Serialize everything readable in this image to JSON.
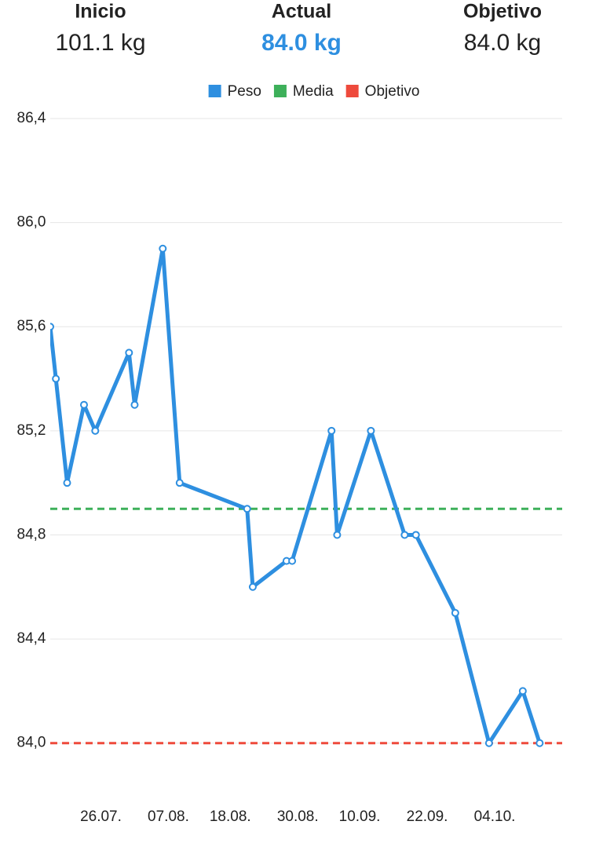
{
  "summary": [
    {
      "label": "Inicio",
      "value": "101.1 kg",
      "color": "#222222"
    },
    {
      "label": "Actual",
      "value": "84.0 kg",
      "color": "#2e8fe0"
    },
    {
      "label": "Objetivo",
      "value": "84.0 kg",
      "color": "#222222"
    }
  ],
  "chart_data": {
    "type": "line",
    "series": [
      {
        "name": "Peso",
        "color": "#2e8fe0",
        "x": [
          "17.07.",
          "18.07.",
          "20.07.",
          "23.07.",
          "25.07.",
          "31.07.",
          "01.08.",
          "06.08.",
          "09.08.",
          "21.08.",
          "22.08.",
          "28.08.",
          "29.08.",
          "05.09.",
          "06.09.",
          "12.09.",
          "18.09.",
          "20.09.",
          "27.09.",
          "03.10.",
          "09.10.",
          "12.10."
        ],
        "values": [
          85.6,
          85.4,
          85.0,
          85.3,
          85.2,
          85.5,
          85.3,
          85.9,
          85.0,
          84.9,
          84.6,
          84.7,
          84.7,
          85.2,
          84.8,
          85.2,
          84.8,
          84.8,
          84.5,
          84.0,
          84.2,
          84.0
        ]
      }
    ],
    "reference_lines": [
      {
        "name": "Media",
        "color": "#3db05a",
        "value": 84.9
      },
      {
        "name": "Objetivo",
        "color": "#ee4a3c",
        "value": 84.0
      }
    ],
    "xlim": [
      "17.07.",
      "16.10."
    ],
    "xticks": [
      "26.07.",
      "07.08.",
      "18.08.",
      "30.08.",
      "10.09.",
      "22.09.",
      "04.10."
    ],
    "ylim": [
      83.8,
      86.4
    ],
    "yticks": [
      {
        "value": 84.0,
        "label": "84,0"
      },
      {
        "value": 84.4,
        "label": "84,4"
      },
      {
        "value": 84.8,
        "label": "84,8"
      },
      {
        "value": 85.2,
        "label": "85,2"
      },
      {
        "value": 85.6,
        "label": "85,6"
      },
      {
        "value": 86.0,
        "label": "86,0"
      },
      {
        "value": 86.4,
        "label": "86,4"
      }
    ],
    "grid": true,
    "legend": "top"
  }
}
